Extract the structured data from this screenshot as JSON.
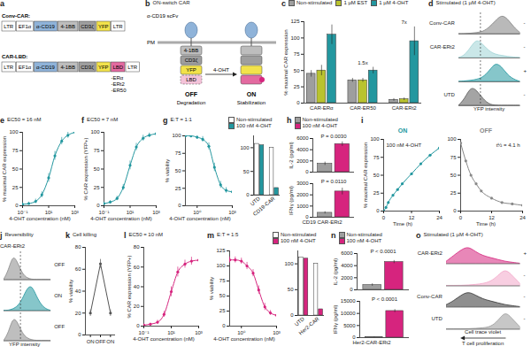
{
  "diagrams": [
    {
      "panel": "a",
      "rows": [
        {
          "label": "Conv-CAR:",
          "parts": [
            {
              "text": "LTR",
              "color": "#ffffff"
            },
            {
              "text": "EF1α",
              "color": "#ffffff"
            },
            {
              "text": "α-CD19",
              "color": "#8fb3d9"
            },
            {
              "text": "4-1BB",
              "color": "#bdbdbd"
            },
            {
              "text": "CD3ζ",
              "color": "#9e9e9e"
            },
            {
              "text": "YFP",
              "color": "#f2e24b"
            },
            {
              "text": "LTR",
              "color": "#ffffff"
            }
          ]
        },
        {
          "label": "CAR-LBD:",
          "parts": [
            {
              "text": "LTR",
              "color": "#ffffff"
            },
            {
              "text": "EF1α",
              "color": "#ffffff"
            },
            {
              "text": "α-CD19",
              "color": "#8fb3d9"
            },
            {
              "text": "4-1BB",
              "color": "#bdbdbd"
            },
            {
              "text": "CD3ζ",
              "color": "#9e9e9e"
            },
            {
              "text": "YFP",
              "color": "#f2e24b"
            },
            {
              "text": "LBD",
              "color": "#e36aa0",
              "variants": [
                "-ERα",
                "-ERt2",
                "-ER50"
              ]
            },
            {
              "text": "LTR",
              "color": "#ffffff"
            }
          ]
        }
      ]
    },
    {
      "panel": "b",
      "title": "ON-switch CAR",
      "scfv": "α-CD19 scFv",
      "membrane": "PM",
      "parts": [
        {
          "text": "4-1BB",
          "color": "#bdbdbd"
        },
        {
          "text": "CD3ζ",
          "color": "#9e9e9e"
        },
        {
          "text": "YFP",
          "color": "#f2e24b"
        },
        {
          "text": "LBD",
          "color": "#e36aa0"
        }
      ],
      "ligand": "4-OHT",
      "states": [
        {
          "name": "OFF",
          "caption": "Degradation"
        },
        {
          "name": "ON",
          "caption": "Stabilization"
        }
      ]
    }
  ],
  "chart_data": [
    {
      "panel": "c",
      "type": "bar",
      "ylabel": "% maximal CAR expression",
      "legend": "top",
      "categories": [
        "CAR-ERα",
        "CAR-ER50",
        "CAR-ERt2"
      ],
      "ylim": [
        0,
        125
      ],
      "yticks": [
        0,
        25,
        50,
        75,
        100,
        125
      ],
      "series": [
        {
          "name": "Non-stimulated",
          "color": "#9e9e9e",
          "values": [
            45,
            35,
            5
          ],
          "errors": [
            5,
            3,
            2
          ]
        },
        {
          "name": "1 µM EST",
          "color": "#b9c32f",
          "values": [
            50,
            35,
            6
          ],
          "errors": [
            8,
            3,
            2
          ]
        },
        {
          "name": "1 µM 4-OHT",
          "color": "#23979f",
          "values": [
            105,
            50,
            95
          ],
          "errors": [
            15,
            5,
            22
          ]
        }
      ],
      "annotations": [
        {
          "category": "CAR-ER50",
          "text": "1.5x"
        },
        {
          "category": "CAR-ERt2",
          "text": "7x"
        }
      ]
    },
    {
      "panel": "d",
      "type": "histogram",
      "title": "Stimulated (1 µM 4-OHT)",
      "xlabel": "YFP intensity",
      "tick_labels": false,
      "xlim": [
        0,
        10
      ],
      "ylim": [
        0,
        1
      ],
      "gate": 3.5,
      "x": [
        0,
        1,
        2,
        3,
        4,
        5,
        6,
        7,
        8,
        9,
        10
      ],
      "rows": [
        {
          "name": "Conv-CAR",
          "sign": "-",
          "color": "#7f7f7f",
          "values": [
            0,
            0,
            0.02,
            0.05,
            0.1,
            0.3,
            0.6,
            0.9,
            0.7,
            0.3,
            0.05
          ]
        },
        {
          "name": "CAR-ERt2",
          "sign": "-",
          "color": "#9fd3d6",
          "values": [
            0,
            0.1,
            0.5,
            0.9,
            0.6,
            0.3,
            0.15,
            0.1,
            0.05,
            0.02,
            0
          ]
        },
        {
          "name": null,
          "sign": "+",
          "color": "#23979f",
          "values": [
            0,
            0.02,
            0.05,
            0.1,
            0.2,
            0.5,
            0.9,
            0.7,
            0.3,
            0.1,
            0
          ]
        },
        {
          "name": "UTD",
          "sign": "-",
          "color": "#5a5a5a",
          "values": [
            0,
            0.3,
            0.9,
            0.7,
            0.3,
            0.05,
            0,
            0,
            0,
            0,
            0
          ]
        }
      ]
    },
    {
      "panel": "e",
      "type": "line",
      "title": "EC50 = 16 nM",
      "log": "x",
      "xlabel": "4-OHT concentration (nM)",
      "ylabel": "% maximal CAR expression",
      "xlim": [
        0.1,
        1000
      ],
      "xticks": [
        {
          "value": 0.1,
          "label": "10⁻¹"
        },
        {
          "value": 10,
          "label": "10¹"
        },
        {
          "value": 1000,
          "label": "10³"
        }
      ],
      "ylim": [
        0,
        100
      ],
      "yticks": [
        0,
        25,
        50,
        75,
        100
      ],
      "color": "#23979f",
      "x": [
        0.1,
        0.3,
        1,
        3,
        10,
        30,
        100,
        300,
        1000
      ],
      "values": [
        2,
        3,
        6,
        15,
        38,
        68,
        88,
        96,
        100
      ],
      "errors": [
        2,
        2,
        3,
        4,
        6,
        6,
        5,
        4,
        3
      ]
    },
    {
      "panel": "f",
      "type": "line",
      "title": "EC50 = 7 nM",
      "log": "x",
      "xlabel": "4-OHT concentration (nM)",
      "ylabel": "% CAR expression (YFP+)",
      "xlim": [
        0.1,
        1000
      ],
      "xticks": [
        {
          "value": 0.1,
          "label": "10⁻¹"
        },
        {
          "value": 10,
          "label": "10¹"
        },
        {
          "value": 1000,
          "label": "10³"
        }
      ],
      "ylim": [
        0,
        100
      ],
      "yticks": [
        0,
        25,
        50,
        75,
        100
      ],
      "color": "#23979f",
      "x": [
        0.1,
        0.3,
        1,
        3,
        10,
        30,
        100,
        300,
        1000
      ],
      "values": [
        3,
        5,
        10,
        25,
        55,
        80,
        92,
        96,
        98
      ],
      "errors": [
        2,
        2,
        3,
        4,
        6,
        5,
        4,
        3,
        2
      ]
    },
    {
      "panel": "g",
      "type": "line",
      "title": "E:T = 1:1",
      "log": "x",
      "legend": "top",
      "xlabel": "4-OHT concentration (nM)",
      "ylabel": "% viability",
      "xlim": [
        0.1,
        1000
      ],
      "xticks": [
        {
          "value": 1,
          "label": "10⁰"
        },
        {
          "value": 1000,
          "label": "10³"
        }
      ],
      "ylim": [
        0,
        100
      ],
      "yticks": [
        0,
        25,
        50,
        75,
        100
      ],
      "color": "#23979f",
      "x": [
        0.1,
        0.3,
        1,
        3,
        10,
        30,
        100,
        300,
        1000
      ],
      "values": [
        100,
        100,
        98,
        95,
        85,
        55,
        30,
        22,
        20
      ],
      "errors": [
        3,
        3,
        3,
        4,
        5,
        6,
        5,
        4,
        3
      ],
      "inset": {
        "type": "bar",
        "categories": [
          "UTD",
          "CD19-CAR"
        ],
        "ylim": [
          0,
          125
        ],
        "yticks": [
          0,
          50,
          100
        ],
        "series": [
          {
            "name": "Non-stimulated",
            "color": "#ffffff",
            "values": [
              108,
              100
            ]
          },
          {
            "name": "100 nM 4-OHT",
            "color": "#23979f",
            "values": [
              105,
              15
            ]
          }
        ]
      }
    },
    {
      "panel": "h",
      "type": "bar",
      "legend": "top",
      "tick_labels": "y",
      "xlabel": "CD19 CAR-ERt2",
      "series": [
        {
          "name": "Non-stimulated",
          "color": "#9e9e9e"
        },
        {
          "name": "100 nM 4-OHT",
          "color": "#d6247e"
        }
      ],
      "charts": [
        {
          "ylabel": "IL-2 (pg/ml)",
          "ylim": [
            0,
            6000
          ],
          "yticks": [
            0,
            2000,
            4000,
            6000
          ],
          "values": [
            1500,
            5000
          ],
          "errors": [
            300,
            400
          ],
          "annotation": "P = 0.0030"
        },
        {
          "ylabel": "IFNγ (pg/ml)",
          "ylim": [
            0,
            3000
          ],
          "yticks": [
            0,
            1000,
            2000,
            3000
          ],
          "values": [
            400,
            2300
          ],
          "errors": [
            100,
            300
          ],
          "annotation": "P = 0.0110"
        }
      ]
    },
    {
      "panel": "i",
      "type": "line",
      "ylabel": "% maximal CAR expression",
      "ylim": [
        0,
        100
      ],
      "yticks": [
        0,
        25,
        50,
        75,
        100
      ],
      "charts": [
        {
          "title": "ON",
          "annotation": "100 nM 4-OHT",
          "xlabel": "Time (h)",
          "color": "#23979f",
          "xlim": [
            0,
            24
          ],
          "xticks": [
            0,
            12,
            24
          ],
          "x": [
            0,
            1,
            2,
            4,
            6,
            8,
            12,
            16,
            20,
            24
          ],
          "values": [
            0,
            5,
            12,
            22,
            30,
            38,
            52,
            66,
            78,
            88
          ]
        },
        {
          "title": "OFF",
          "annotation": "t½ = 4.1 h",
          "xlabel": "Time (h)",
          "color": "#888888",
          "xlim": [
            0,
            24
          ],
          "xticks": [
            0,
            12,
            24
          ],
          "x": [
            0,
            2,
            4,
            6,
            8,
            12,
            16,
            20,
            24
          ],
          "values": [
            95,
            70,
            50,
            38,
            28,
            18,
            12,
            10,
            8
          ]
        }
      ]
    },
    {
      "panel": "j",
      "type": "histogram",
      "title": "Reversibility",
      "label": "CAR-ERt2",
      "xlabel": "YFP intensity",
      "tick_labels": false,
      "xlim": [
        0,
        10
      ],
      "ylim": [
        0,
        1
      ],
      "gate": 3.5,
      "x": [
        0,
        1,
        2,
        3,
        4,
        5,
        6,
        7,
        8,
        9,
        10
      ],
      "rows": [
        {
          "sign": "OFF",
          "color": "#888888",
          "values": [
            0,
            0.3,
            0.9,
            0.6,
            0.2,
            0.05,
            0,
            0,
            0,
            0,
            0
          ]
        },
        {
          "sign": "ON",
          "color": "#23979f",
          "values": [
            0,
            0,
            0.05,
            0.15,
            0.4,
            0.8,
            0.9,
            0.5,
            0.2,
            0.05,
            0
          ]
        },
        {
          "sign": "OFF",
          "color": "#888888",
          "values": [
            0,
            0.25,
            0.85,
            0.65,
            0.25,
            0.08,
            0.02,
            0,
            0,
            0,
            0
          ]
        }
      ]
    },
    {
      "panel": "k",
      "type": "line",
      "title": "Cell killing",
      "ylabel": "% viability",
      "categories": [
        "ON",
        "OFF",
        "ON"
      ],
      "values": [
        20,
        65,
        20
      ],
      "errors": [
        3,
        4,
        3
      ],
      "ylim": [
        0,
        80
      ],
      "yticks": [
        0,
        20,
        40,
        60,
        80
      ],
      "color": "#555555"
    },
    {
      "panel": "l",
      "type": "line",
      "title": "EC50 = 10 nM",
      "log": "x",
      "xlabel": "4-OHT concentration (nM)",
      "ylabel": "% CAR expression (YFP+)",
      "xlim": [
        0.1,
        1000
      ],
      "xticks": [
        {
          "value": 0.1,
          "label": "10⁻¹"
        },
        {
          "value": 10,
          "label": "10¹"
        },
        {
          "value": 1000,
          "label": "10³"
        }
      ],
      "ylim": [
        0,
        80
      ],
      "yticks": [
        0,
        20,
        40,
        60,
        80
      ],
      "color": "#d6247e",
      "x": [
        0.1,
        0.3,
        1,
        3,
        10,
        30,
        100,
        300,
        1000
      ],
      "values": [
        1,
        2,
        4,
        12,
        35,
        55,
        63,
        66,
        67
      ],
      "errors": [
        1,
        1,
        2,
        3,
        5,
        5,
        4,
        4,
        3
      ]
    },
    {
      "panel": "m",
      "type": "line",
      "title": "E:T = 1:5",
      "log": "x",
      "legend": "top",
      "xlabel": "4-OHT concentration (nM)",
      "ylabel": "% viability",
      "xlim": [
        0.1,
        1000
      ],
      "xticks": [
        {
          "value": 1,
          "label": "10⁰"
        },
        {
          "value": 1000,
          "label": "10³"
        }
      ],
      "ylim": [
        0,
        125
      ],
      "yticks": [
        0,
        25,
        50,
        75,
        100,
        125
      ],
      "color": "#d6247e",
      "x": [
        0.1,
        0.3,
        1,
        3,
        10,
        30,
        100,
        300,
        1000
      ],
      "values": [
        110,
        110,
        108,
        100,
        88,
        60,
        32,
        22,
        18
      ],
      "errors": [
        5,
        5,
        5,
        6,
        6,
        7,
        6,
        4,
        3
      ],
      "inset": {
        "type": "bar",
        "categories": [
          "UTD",
          "Her2-CAR"
        ],
        "ylim": [
          0,
          125
        ],
        "yticks": [
          0,
          50,
          100
        ],
        "series": [
          {
            "name": "Non-stimulated",
            "color": "#ffffff",
            "values": [
              112,
              100
            ]
          },
          {
            "name": "100 nM 4-OHT",
            "color": "#d6247e",
            "values": [
              110,
              12
            ]
          }
        ]
      }
    },
    {
      "panel": "n",
      "type": "bar",
      "legend": "top",
      "tick_labels": "y",
      "xlabel": "Her2-CAR-ERt2",
      "series": [
        {
          "name": "Non-stimulated",
          "color": "#9e9e9e"
        },
        {
          "name": "100 nM 4-OHT",
          "color": "#d6247e"
        }
      ],
      "charts": [
        {
          "ylabel": "IL-2 (pg/ml)",
          "ylim": [
            0,
            6000
          ],
          "yticks": [
            0,
            2000,
            4000,
            6000
          ],
          "values": [
            800,
            4600
          ],
          "errors": [
            200,
            250
          ],
          "annotation": "P < 0.0001"
        },
        {
          "ylabel": "IFNγ (pg/ml)",
          "ylim": [
            0,
            15000
          ],
          "yticks": [
            0,
            5000,
            10000,
            15000
          ],
          "values": [
            200,
            11000
          ],
          "errors": [
            100,
            600
          ],
          "annotation": "P < 0.0001"
        }
      ]
    },
    {
      "panel": "o",
      "type": "histogram",
      "title": "Stimulated (1 µM 4-OHT)",
      "xlabel": "Cell trace violet",
      "annotation": "T cell proliferation",
      "tick_labels": false,
      "xlim": [
        0,
        10
      ],
      "ylim": [
        0,
        1
      ],
      "x": [
        0,
        1,
        2,
        3,
        4,
        5,
        6,
        7,
        8,
        9,
        10
      ],
      "rows": [
        {
          "name": "CAR-ERt2",
          "sign": "+",
          "color": "#d6247e",
          "values": [
            0.1,
            0.4,
            0.7,
            0.9,
            0.6,
            0.4,
            0.3,
            0.2,
            0.1,
            0.05,
            0
          ]
        },
        {
          "name": null,
          "sign": "-",
          "color": "#f2a6c8",
          "values": [
            0,
            0,
            0,
            0.02,
            0.05,
            0.1,
            0.2,
            0.5,
            0.9,
            0.5,
            0.1
          ]
        },
        {
          "name": "Conv-CAR",
          "sign": "-",
          "color": "#333333",
          "values": [
            0.1,
            0.3,
            0.6,
            0.8,
            0.6,
            0.4,
            0.3,
            0.2,
            0.1,
            0.05,
            0
          ]
        },
        {
          "name": "UTD",
          "sign": "-",
          "color": "#999999",
          "values": [
            0,
            0,
            0,
            0,
            0.02,
            0.05,
            0.1,
            0.4,
            0.95,
            0.5,
            0.1
          ]
        }
      ]
    }
  ]
}
